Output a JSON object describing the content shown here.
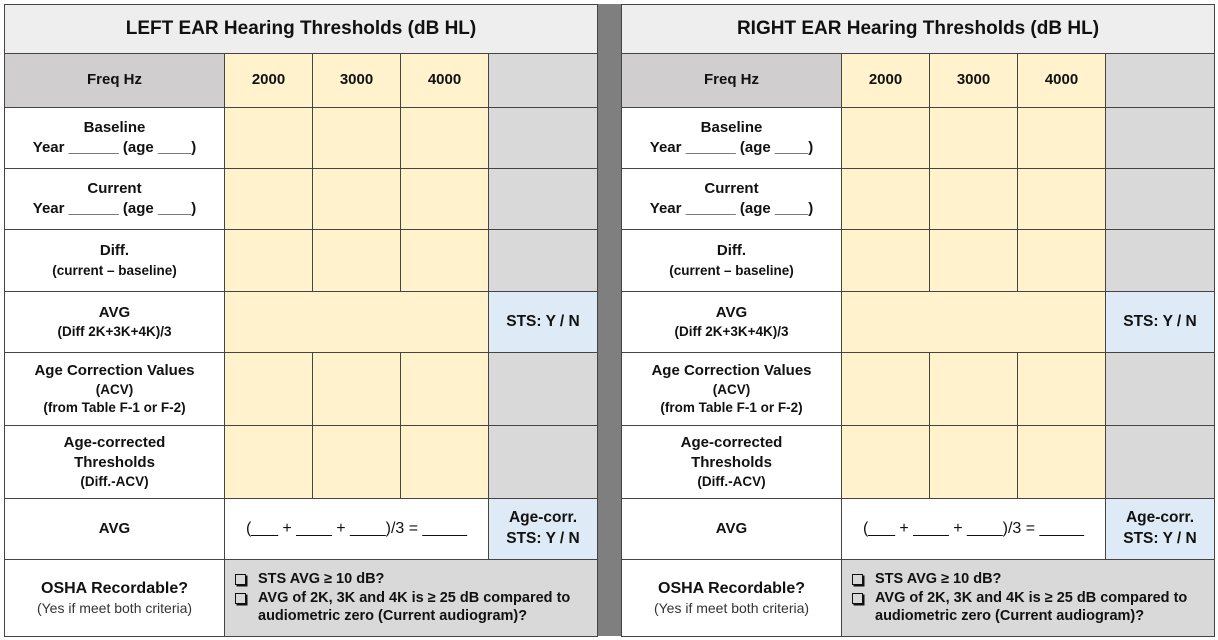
{
  "panels": [
    {
      "title": "LEFT EAR Hearing Thresholds (dB HL)",
      "freq_header": "Freq Hz",
      "frequencies": [
        2000,
        3000,
        4000
      ],
      "rows": [
        {
          "label": [
            "Baseline",
            "Year ______ (age ____)"
          ]
        },
        {
          "label": [
            "Current",
            "Year ______ (age ____)"
          ]
        },
        {
          "label": [
            "Diff.",
            "(current – baseline)"
          ]
        },
        {
          "label": [
            "AVG",
            "(Diff 2K+3K+4K)/3"
          ],
          "side": [
            "STS: Y / N"
          ]
        },
        {
          "label": [
            "Age Correction Values",
            "(ACV)",
            "(from Table F-1 or F-2)"
          ]
        },
        {
          "label": [
            "Age-corrected",
            "Thresholds",
            "(Diff.-ACV)"
          ]
        },
        {
          "label": [
            "AVG"
          ],
          "formula": "(___ + ____ + ____)/3 = _____",
          "side": [
            "Age-corr.",
            "STS: Y / N"
          ]
        }
      ],
      "osha": {
        "label": [
          "OSHA Recordable?",
          "(Yes if meet both criteria)"
        ],
        "criteria": [
          "STS AVG ≥ 10 dB?",
          "AVG of 2K, 3K and 4K is ≥ 25 dB compared to audiometric zero (Current audiogram)?"
        ]
      }
    },
    {
      "title": "RIGHT EAR Hearing Thresholds (dB HL)",
      "freq_header": "Freq Hz",
      "frequencies": [
        2000,
        3000,
        4000
      ],
      "rows": [
        {
          "label": [
            "Baseline",
            "Year ______ (age ____)"
          ]
        },
        {
          "label": [
            "Current",
            "Year ______ (age ____)"
          ]
        },
        {
          "label": [
            "Diff.",
            "(current – baseline)"
          ]
        },
        {
          "label": [
            "AVG",
            "(Diff 2K+3K+4K)/3"
          ],
          "side": [
            "STS: Y / N"
          ]
        },
        {
          "label": [
            "Age Correction Values",
            "(ACV)",
            "(from Table F-1 or F-2)"
          ]
        },
        {
          "label": [
            "Age-corrected",
            "Thresholds",
            "(Diff.-ACV)"
          ]
        },
        {
          "label": [
            "AVG"
          ],
          "formula": "(___ + ____ + ____)/3 = _____",
          "side": [
            "Age-corr.",
            "STS: Y / N"
          ]
        }
      ],
      "osha": {
        "label": [
          "OSHA Recordable?",
          "(Yes if meet both criteria)"
        ],
        "criteria": [
          "STS AVG ≥ 10 dB?",
          "AVG of 2K, 3K and 4K is ≥ 25 dB compared to audiometric zero (Current audiogram)?"
        ]
      }
    }
  ]
}
